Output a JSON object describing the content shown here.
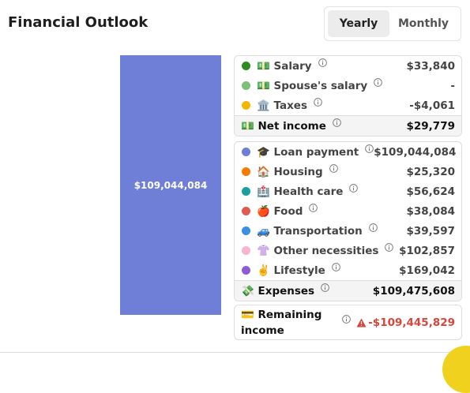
{
  "header": {
    "title": "Financial Outlook",
    "tabs": [
      "Yearly",
      "Monthly"
    ]
  },
  "bar": {
    "label": "$109,044,084",
    "color": "#6f7fd8"
  },
  "income": {
    "items": [
      {
        "label": "💵 Salary",
        "value": "$33,840",
        "color": "#2e8b1f"
      },
      {
        "label": "💵 Spouse's salary",
        "value": "-",
        "color": "#7cc07a"
      },
      {
        "label": "🏛️ Taxes",
        "value": "-$4,061",
        "color": "#f2b705"
      }
    ],
    "total": {
      "label": "💵 Net income",
      "value": "$29,779"
    }
  },
  "expenses": {
    "items": [
      {
        "label": "🎓 Loan payment",
        "value": "$109,044,084",
        "color": "#6f7fd8"
      },
      {
        "label": "🏠 Housing",
        "value": "$25,320",
        "color": "#f57c00"
      },
      {
        "label": "🏥 Health care",
        "value": "$56,624",
        "color": "#1a9e9e"
      },
      {
        "label": "🍎 Food",
        "value": "$38,084",
        "color": "#e05a4f"
      },
      {
        "label": "🚙 Transportation",
        "value": "$39,597",
        "color": "#3a8ee6"
      },
      {
        "label": "👚 Other necessities",
        "value": "$102,857",
        "color": "#f7b3d0"
      },
      {
        "label": "✌️ Lifestyle",
        "value": "$169,042",
        "color": "#8e5bd6"
      }
    ],
    "total": {
      "label": "💸 Expenses",
      "value": "$109,475,608"
    }
  },
  "remaining": {
    "label": "💳 Remaining income",
    "value": "-$109,445,829"
  }
}
